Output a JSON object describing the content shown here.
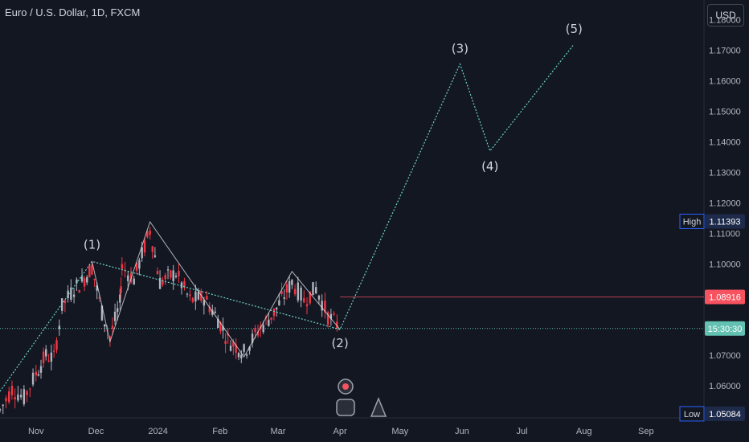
{
  "header": {
    "symbol_title": "Euro / U.S. Dollar, 1D, FXCM",
    "currency": "USD"
  },
  "markers": {
    "high_label": "High",
    "high_value": "1.11393",
    "low_label": "Low",
    "low_value": "1.05084",
    "last_price": "1.08916",
    "countdown": "15:30:30"
  },
  "colors": {
    "background": "#131722",
    "up_candle": "#b2b5be",
    "down_candle": "#f23645",
    "projection_line": "#6fd3c8",
    "current_price": "#f7525f",
    "countdown_line": "#63c1b2",
    "axis_text": "#b2b5be"
  },
  "chart_data": {
    "type": "line",
    "title": "Euro / U.S. Dollar, 1D, FXCM",
    "y_axis": {
      "ticks": [
        "1.18000",
        "1.17000",
        "1.16000",
        "1.15000",
        "1.14000",
        "1.13000",
        "1.12000",
        "1.11000",
        "1.10000",
        "1.09000",
        "1.08000",
        "1.07000",
        "1.06000"
      ],
      "ylim": [
        1.0495,
        1.1865
      ]
    },
    "x_axis": {
      "ticks": [
        "Nov",
        "Dec",
        "2024",
        "Feb",
        "Mar",
        "Apr",
        "May",
        "Jun",
        "Jul",
        "Aug",
        "Sep"
      ],
      "xlim": [
        "2023-10-14",
        "2024-09-30"
      ]
    },
    "wave_labels": [
      {
        "text": "(1)",
        "x": "2023-11-29",
        "y": 1.1008
      },
      {
        "text": "(2)",
        "x": "2024-04-01",
        "y": 1.0785
      },
      {
        "text": "(3)",
        "x": "2024-05-31",
        "y": 1.1655
      },
      {
        "text": "(4)",
        "x": "2024-06-15",
        "y": 1.137
      },
      {
        "text": "(5)",
        "x": "2024-07-27",
        "y": 1.172
      }
    ],
    "elliott_wave_path": [
      {
        "x": "2023-10-14",
        "y": 1.0582
      },
      {
        "x": "2023-11-29",
        "y": 1.1008
      },
      {
        "x": "2024-04-01",
        "y": 1.0785
      },
      {
        "x": "2024-05-31",
        "y": 1.1655
      },
      {
        "x": "2024-06-15",
        "y": 1.137
      },
      {
        "x": "2024-07-27",
        "y": 1.172
      }
    ],
    "sub_wave_path": [
      {
        "x": "2023-11-29",
        "y": 1.1008
      },
      {
        "x": "2023-12-08",
        "y": 1.0745
      },
      {
        "x": "2023-12-28",
        "y": 1.1138
      },
      {
        "x": "2024-02-13",
        "y": 1.0695
      },
      {
        "x": "2024-03-08",
        "y": 1.0975
      },
      {
        "x": "2024-04-01",
        "y": 1.0785
      }
    ],
    "price_path": [
      {
        "x": "2023-10-14",
        "y": 1.052
      },
      {
        "x": "2023-10-20",
        "y": 1.059
      },
      {
        "x": "2023-10-26",
        "y": 1.056
      },
      {
        "x": "2023-11-01",
        "y": 1.064
      },
      {
        "x": "2023-11-06",
        "y": 1.07
      },
      {
        "x": "2023-11-10",
        "y": 1.069
      },
      {
        "x": "2023-11-14",
        "y": 1.086
      },
      {
        "x": "2023-11-20",
        "y": 1.092
      },
      {
        "x": "2023-11-24",
        "y": 1.094
      },
      {
        "x": "2023-11-29",
        "y": 1.099
      },
      {
        "x": "2023-12-04",
        "y": 1.084
      },
      {
        "x": "2023-12-08",
        "y": 1.076
      },
      {
        "x": "2023-12-13",
        "y": 1.087
      },
      {
        "x": "2023-12-14",
        "y": 1.099
      },
      {
        "x": "2023-12-20",
        "y": 1.095
      },
      {
        "x": "2023-12-28",
        "y": 1.111
      },
      {
        "x": "2024-01-02",
        "y": 1.094
      },
      {
        "x": "2024-01-10",
        "y": 1.097
      },
      {
        "x": "2024-01-17",
        "y": 1.088
      },
      {
        "x": "2024-01-24",
        "y": 1.089
      },
      {
        "x": "2024-01-31",
        "y": 1.082
      },
      {
        "x": "2024-02-05",
        "y": 1.075
      },
      {
        "x": "2024-02-13",
        "y": 1.071
      },
      {
        "x": "2024-02-20",
        "y": 1.078
      },
      {
        "x": "2024-02-28",
        "y": 1.084
      },
      {
        "x": "2024-03-08",
        "y": 1.094
      },
      {
        "x": "2024-03-14",
        "y": 1.088
      },
      {
        "x": "2024-03-20",
        "y": 1.092
      },
      {
        "x": "2024-03-26",
        "y": 1.083
      },
      {
        "x": "2024-04-01",
        "y": 1.079
      }
    ],
    "horizontal_lines": [
      {
        "name": "last price",
        "y": 1.08916
      },
      {
        "name": "countdown level",
        "y": 1.0788
      }
    ],
    "high": 1.11393,
    "low": 1.05084,
    "grid": false
  }
}
